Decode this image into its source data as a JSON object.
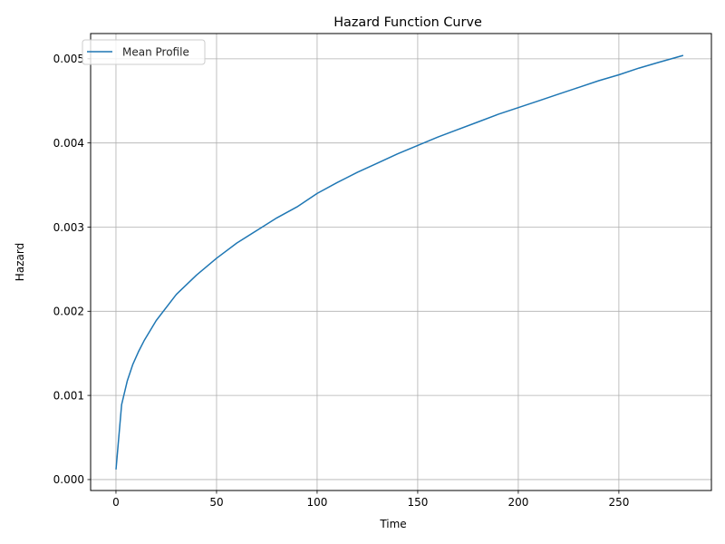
{
  "chart_data": {
    "type": "line",
    "title": "Hazard Function Curve",
    "xlabel": "Time",
    "ylabel": "Hazard",
    "xlim": [
      -12.6,
      296.0
    ],
    "ylim": [
      -0.00013,
      0.0053
    ],
    "x_ticks": [
      0,
      50,
      100,
      150,
      200,
      250
    ],
    "x_tick_labels": [
      "0",
      "50",
      "100",
      "150",
      "200",
      "250"
    ],
    "y_ticks": [
      0.0,
      0.001,
      0.002,
      0.003,
      0.004,
      0.005
    ],
    "y_tick_labels": [
      "0.000",
      "0.001",
      "0.002",
      "0.003",
      "0.004",
      "0.005"
    ],
    "grid": true,
    "legend_position": "upper left",
    "series": [
      {
        "name": "Mean Profile",
        "color": "#1f77b4",
        "x": [
          0,
          2.8,
          5.6,
          8.4,
          11.2,
          14,
          20,
          30,
          40,
          50,
          60,
          70,
          80,
          90,
          100,
          110,
          120,
          130,
          140,
          150,
          160,
          170,
          180,
          190,
          200,
          210,
          220,
          230,
          240,
          250,
          260,
          270,
          282
        ],
        "y": [
          0.00012,
          0.00089,
          0.00117,
          0.00137,
          0.00152,
          0.00165,
          0.00189,
          0.0022,
          0.00243,
          0.00263,
          0.00281,
          0.00296,
          0.00311,
          0.00324,
          0.0034,
          0.00353,
          0.00365,
          0.00376,
          0.00387,
          0.00397,
          0.00407,
          0.00416,
          0.00425,
          0.00434,
          0.00442,
          0.0045,
          0.00458,
          0.00466,
          0.00474,
          0.00481,
          0.00489,
          0.00496,
          0.00504
        ]
      }
    ]
  }
}
